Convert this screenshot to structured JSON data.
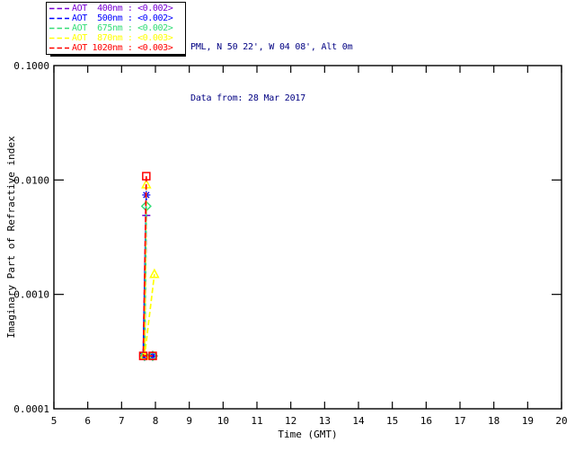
{
  "header": {
    "line1": "PML, N 50 22', W 04 08', Alt 0m",
    "line2": "Data from: 28 Mar 2017",
    "text_color": "#000082"
  },
  "legend": {
    "items": [
      {
        "label": "AOT  400nm : <0.002>",
        "color": "#7700D4"
      },
      {
        "label": "AOT  500nm : <0.002>",
        "color": "#0000FF"
      },
      {
        "label": "AOT  675nm : <0.002>",
        "color": "#33DD77"
      },
      {
        "label": "AOT  870nm : <0.003>",
        "color": "#FFFF00"
      },
      {
        "label": "AOT 1020nm : <0.003>",
        "color": "#FF0000"
      }
    ]
  },
  "chart_data": {
    "type": "line",
    "title": "",
    "xlabel": "Time (GMT)",
    "ylabel": "Imaginary Part of Refractive index",
    "xlim": [
      5,
      20
    ],
    "ylim": [
      0.0001,
      0.1
    ],
    "xscale": "linear",
    "yscale": "log",
    "grid": false,
    "legend_position": "top-left-outside",
    "x_ticks": [
      5,
      6,
      7,
      8,
      9,
      10,
      11,
      12,
      13,
      14,
      15,
      16,
      17,
      18,
      19,
      20
    ],
    "y_ticks": [
      {
        "value": 0.1,
        "label": "0.1000"
      },
      {
        "value": 0.01,
        "label": "0.0100"
      },
      {
        "value": 0.001,
        "label": "0.0010"
      },
      {
        "value": 0.0001,
        "label": "0.0001"
      }
    ],
    "series": [
      {
        "name": "AOT 400nm",
        "color": "#7700D4",
        "marker": "plus",
        "points": [
          [
            7.73,
            0.0049
          ],
          [
            7.68,
            0.00029
          ]
        ]
      },
      {
        "name": "AOT 500nm",
        "color": "#0000FF",
        "marker": "asterisk",
        "points": [
          [
            7.73,
            0.0074
          ],
          [
            7.64,
            0.00029
          ],
          [
            7.92,
            0.00029
          ]
        ]
      },
      {
        "name": "AOT 675nm",
        "color": "#33DD77",
        "marker": "diamond",
        "points": [
          [
            7.73,
            0.0059
          ],
          [
            7.68,
            0.00029
          ],
          [
            7.92,
            0.00029
          ]
        ]
      },
      {
        "name": "AOT 870nm",
        "color": "#FFFF00",
        "marker": "triangle",
        "points": [
          [
            7.73,
            0.0091
          ],
          [
            7.68,
            0.00029
          ],
          [
            7.97,
            0.0015
          ]
        ]
      },
      {
        "name": "AOT 1020nm",
        "color": "#FF0000",
        "marker": "square",
        "points": [
          [
            7.73,
            0.0108
          ],
          [
            7.64,
            0.00029
          ],
          [
            7.92,
            0.00029
          ]
        ]
      }
    ],
    "line_style": "dashed"
  }
}
